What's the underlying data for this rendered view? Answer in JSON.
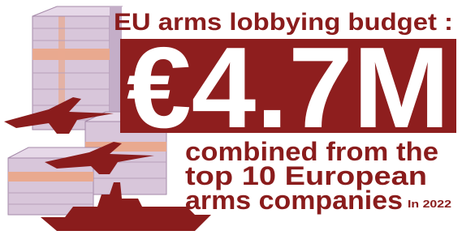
{
  "header": {
    "title": "EU arms lobbying budget :",
    "amount": "€4.7M"
  },
  "body": {
    "lines": [
      "combined from the",
      "top 10 European",
      "arms companies"
    ],
    "note": "In 2022"
  }
}
